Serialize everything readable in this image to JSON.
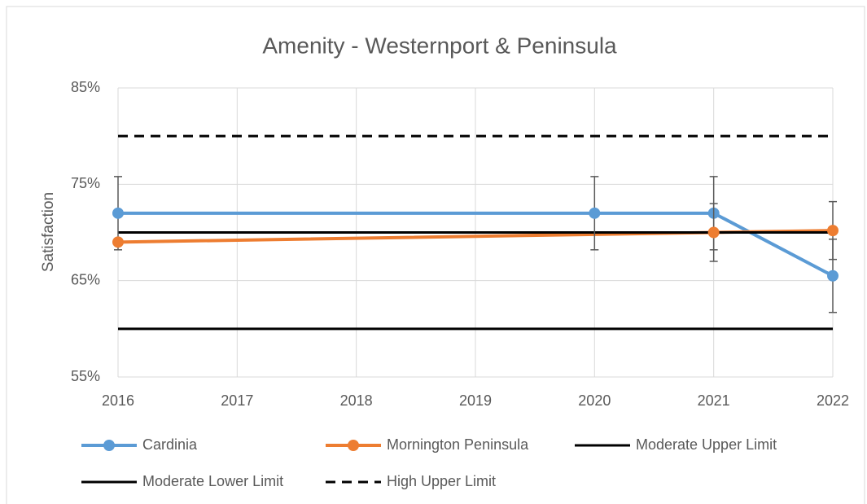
{
  "chart_data": {
    "type": "line",
    "title": "Amenity - Westernport & Peninsula",
    "y_label": "Satisfaction",
    "xlim": [
      2016,
      2022
    ],
    "xticks": [
      2016,
      2017,
      2018,
      2019,
      2020,
      2021,
      2022
    ],
    "ylim": [
      55,
      85
    ],
    "yticks": [
      {
        "value": 55,
        "label": "55%"
      },
      {
        "value": 65,
        "label": "65%"
      },
      {
        "value": 75,
        "label": "75%"
      },
      {
        "value": 85,
        "label": "85%"
      }
    ],
    "grid": true,
    "legend": "bottom",
    "series": [
      {
        "name": "Cardinia",
        "color": "#5b9bd5",
        "marker": true,
        "x": [
          2016,
          2020,
          2021,
          2022
        ],
        "values": [
          72,
          72,
          72,
          65.5
        ],
        "errors": [
          3.8,
          3.8,
          3.8,
          3.8
        ]
      },
      {
        "name": "Mornington Peninsula",
        "color": "#ed7d31",
        "marker": true,
        "x": [
          2016,
          2021,
          2022
        ],
        "values": [
          69,
          70,
          70.2
        ],
        "errors": [
          null,
          3,
          3
        ]
      },
      {
        "name": "Moderate Upper Limit",
        "color": "#000000",
        "x": [
          2016,
          2022
        ],
        "values": [
          70,
          70
        ]
      },
      {
        "name": "Moderate Lower Limit",
        "color": "#000000",
        "x": [
          2016,
          2022
        ],
        "values": [
          60,
          60
        ]
      },
      {
        "name": "High Upper Limit",
        "color": "#000000",
        "dashed": true,
        "x": [
          2016,
          2022
        ],
        "values": [
          80,
          80
        ]
      }
    ]
  }
}
